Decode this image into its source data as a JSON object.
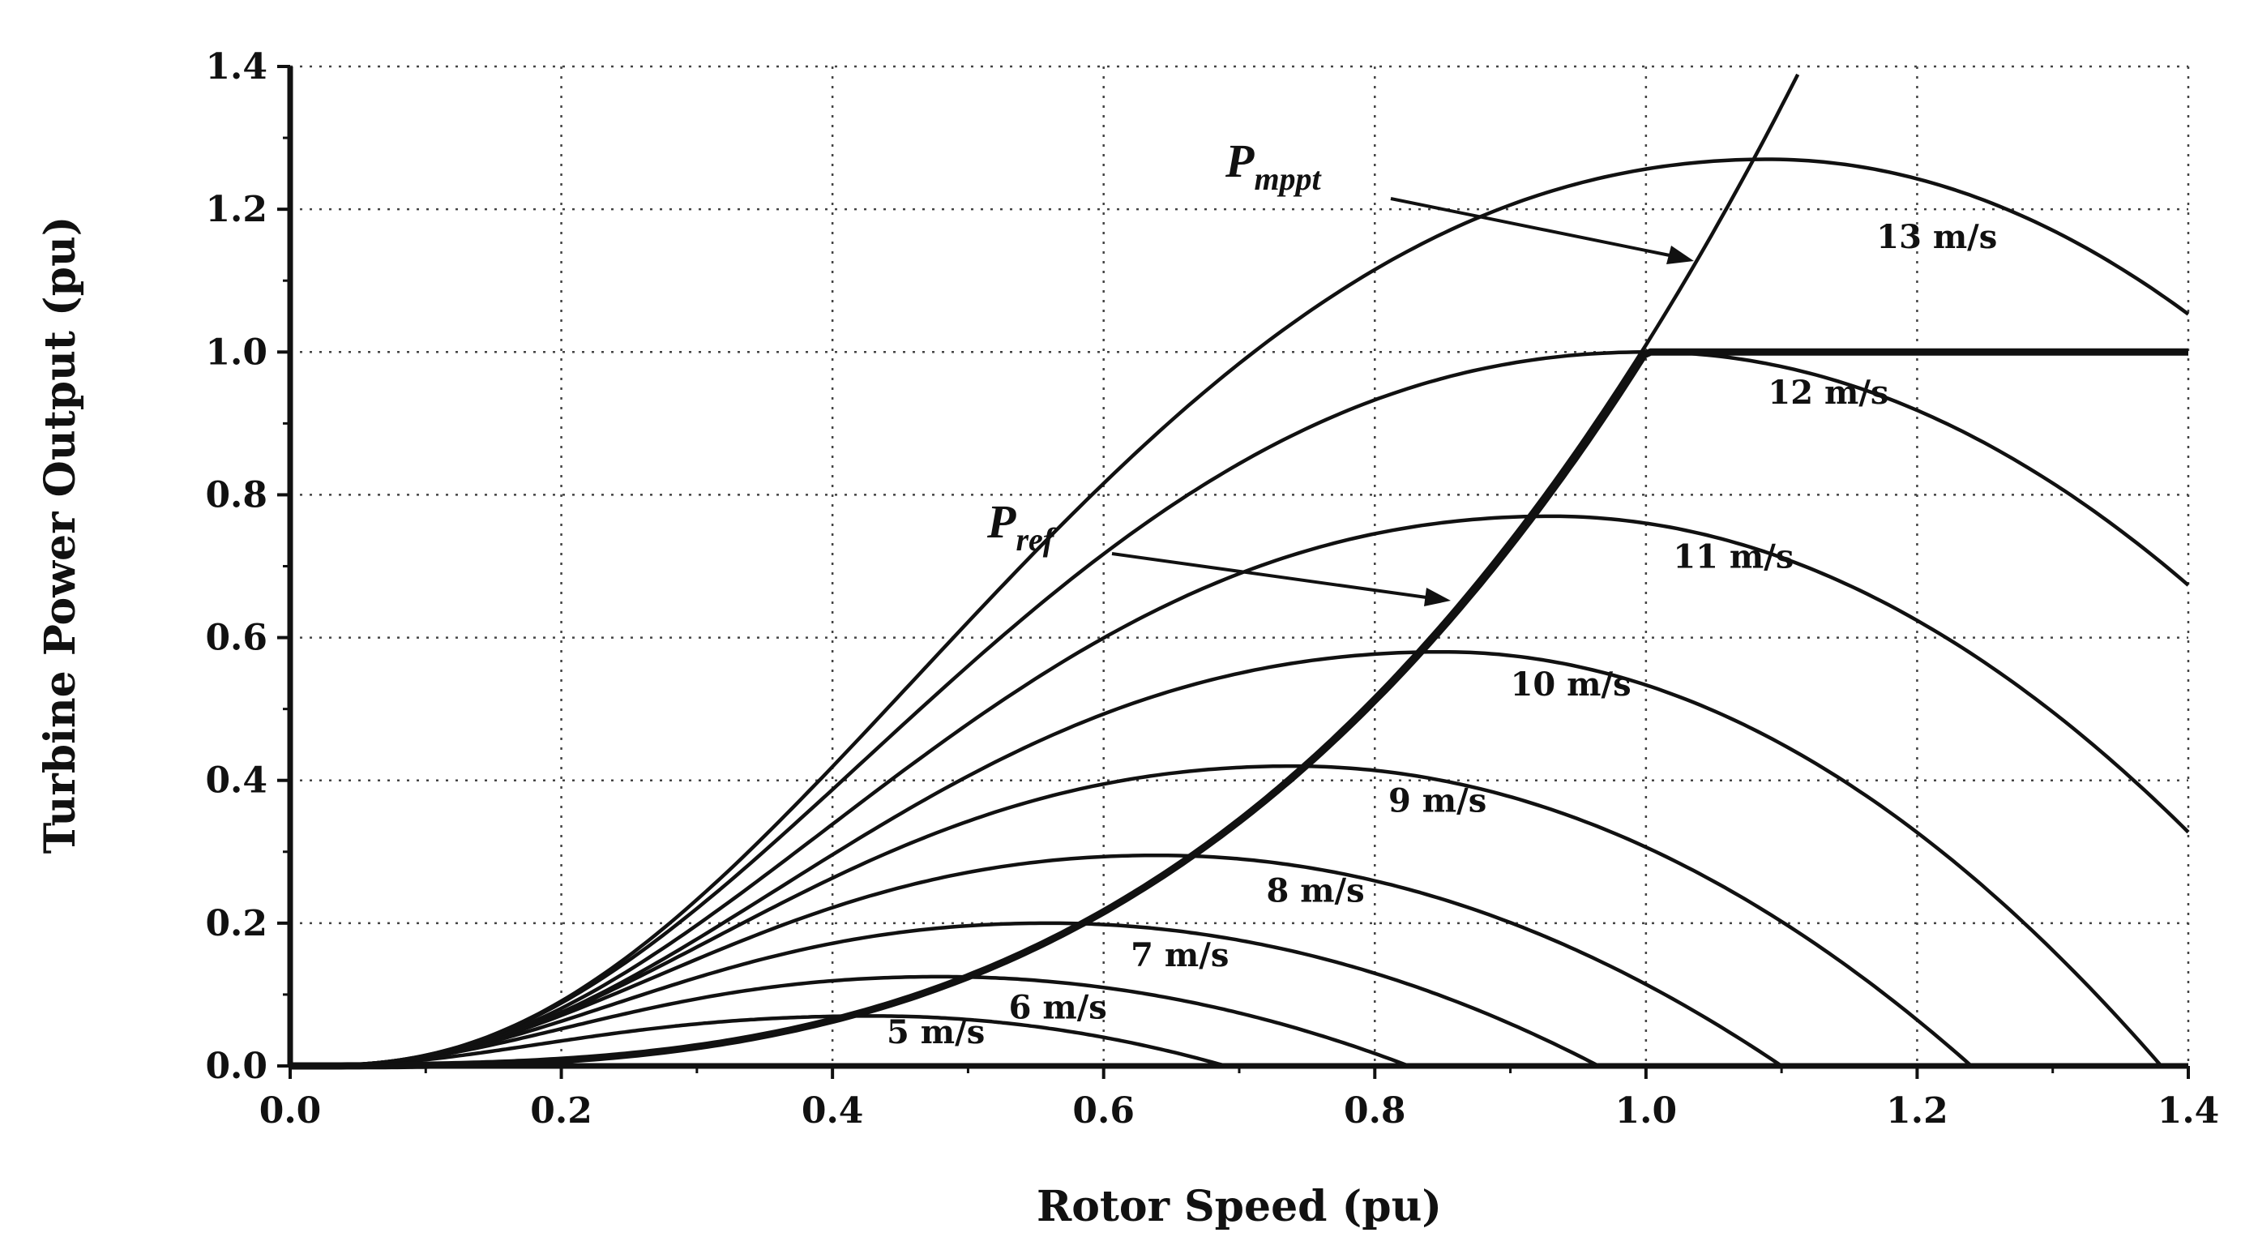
{
  "chart_data": {
    "type": "line",
    "xlabel": "Rotor Speed (pu)",
    "ylabel": "Turbine Power Output (pu)",
    "xlim": [
      0.0,
      1.4
    ],
    "ylim": [
      0.0,
      1.4
    ],
    "x_ticks": [
      "0.0",
      "0.2",
      "0.4",
      "0.6",
      "0.8",
      "1.0",
      "1.2",
      "1.4"
    ],
    "y_ticks": [
      "0.0",
      "0.2",
      "0.4",
      "0.6",
      "0.8",
      "1.0",
      "1.2",
      "1.4"
    ],
    "grid": true,
    "grid_style": "dotted",
    "line_color": "#111111",
    "series": [
      {
        "name": "5 m/s",
        "peak_x": 0.43,
        "peak_y": 0.07,
        "zero_x": 0.69
      },
      {
        "name": "6 m/s",
        "peak_x": 0.48,
        "peak_y": 0.125,
        "zero_x": 0.825
      },
      {
        "name": "7 m/s",
        "peak_x": 0.56,
        "peak_y": 0.2,
        "zero_x": 0.965
      },
      {
        "name": "8 m/s",
        "peak_x": 0.64,
        "peak_y": 0.295,
        "zero_x": 1.1
      },
      {
        "name": "9 m/s",
        "peak_x": 0.74,
        "peak_y": 0.42,
        "zero_x": 1.24
      },
      {
        "name": "10 m/s",
        "peak_x": 0.85,
        "peak_y": 0.58,
        "zero_x": 1.38
      },
      {
        "name": "11 m/s",
        "peak_x": 0.93,
        "peak_y": 0.77,
        "zero_x": 1.55
      },
      {
        "name": "12 m/s",
        "peak_x": 1.0,
        "peak_y": 1.0,
        "zero_x": 1.7
      },
      {
        "name": "13 m/s",
        "peak_x": 1.09,
        "peak_y": 1.27,
        "zero_x": 1.84
      }
    ],
    "p_mppt": {
      "label_main": "P",
      "label_sub": "mppt",
      "coefficient": 1.01
    },
    "p_ref": {
      "label_main": "P",
      "label_sub": "ref",
      "coefficient": 1.0,
      "limit": 1.0
    }
  }
}
